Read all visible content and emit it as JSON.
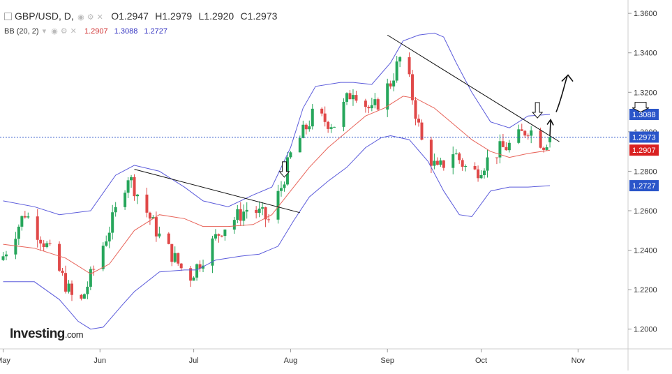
{
  "header": {
    "symbol": "GBP/USD, D,",
    "open": "O1.2947",
    "high": "H1.2979",
    "low": "L1.2920",
    "close": "C1.2973",
    "bb_label": "BB (20, 2)",
    "bb_mid": "1.2907",
    "bb_upper": "1.3088",
    "bb_lower": "1.2727"
  },
  "logo": {
    "name": "Investing",
    "suffix": ".com"
  },
  "colors": {
    "up": "#26a65b",
    "down": "#e04848",
    "bb_outer": "#5b5bdb",
    "bb_mid": "#e8645a",
    "price_line": "#2a55c9",
    "trend": "#111111",
    "axis_text": "#333333",
    "grid": "#eeeeee"
  },
  "chart_data": {
    "type": "candlestick",
    "title": "GBP/USD, D,",
    "y_ticks": [
      "1.3600",
      "1.3400",
      "1.3200",
      "1.3000",
      "1.2800",
      "1.2600",
      "1.2400",
      "1.2200",
      "1.2000"
    ],
    "y_range": [
      1.19,
      1.365
    ],
    "x_labels": [
      "May",
      "Jun",
      "Jul",
      "Aug",
      "Sep",
      "Oct",
      "Nov"
    ],
    "x_label_days": [
      0,
      31,
      61,
      92,
      123,
      153,
      184
    ],
    "x_range_days": [
      -1,
      200
    ],
    "last_price": {
      "label": "1.2973",
      "value": 1.2973
    },
    "bb_tags": [
      {
        "label": "1.3088",
        "value": 1.3088
      },
      {
        "label": "1.2907",
        "value": 1.2907
      },
      {
        "label": "1.2727",
        "value": 1.2727
      }
    ],
    "key_closes": [
      {
        "day": 0,
        "close": 1.237
      },
      {
        "day": 7,
        "close": 1.259
      },
      {
        "day": 14,
        "close": 1.242
      },
      {
        "day": 24,
        "close": 1.21
      },
      {
        "day": 35,
        "close": 1.255
      },
      {
        "day": 40,
        "close": 1.278
      },
      {
        "day": 50,
        "close": 1.247
      },
      {
        "day": 57,
        "close": 1.231
      },
      {
        "day": 60,
        "close": 1.227
      },
      {
        "day": 70,
        "close": 1.251
      },
      {
        "day": 79,
        "close": 1.262
      },
      {
        "day": 85,
        "close": 1.255
      },
      {
        "day": 89,
        "close": 1.272
      },
      {
        "day": 92,
        "close": 1.288
      },
      {
        "day": 99,
        "close": 1.308
      },
      {
        "day": 106,
        "close": 1.304
      },
      {
        "day": 112,
        "close": 1.322
      },
      {
        "day": 118,
        "close": 1.31
      },
      {
        "day": 124,
        "close": 1.325
      },
      {
        "day": 127,
        "close": 1.337
      },
      {
        "day": 130,
        "close": 1.325
      },
      {
        "day": 134,
        "close": 1.295
      },
      {
        "day": 139,
        "close": 1.28
      },
      {
        "day": 144,
        "close": 1.29
      },
      {
        "day": 150,
        "close": 1.278
      },
      {
        "day": 158,
        "close": 1.29
      },
      {
        "day": 163,
        "close": 1.294
      },
      {
        "day": 168,
        "close": 1.302
      },
      {
        "day": 173,
        "close": 1.294
      },
      {
        "day": 175,
        "close": 1.2973
      }
    ],
    "bb_upper_curve": [
      {
        "day": 0,
        "value": 1.265
      },
      {
        "day": 10,
        "value": 1.262
      },
      {
        "day": 18,
        "value": 1.258
      },
      {
        "day": 28,
        "value": 1.26
      },
      {
        "day": 36,
        "value": 1.278
      },
      {
        "day": 42,
        "value": 1.283
      },
      {
        "day": 50,
        "value": 1.28
      },
      {
        "day": 58,
        "value": 1.272
      },
      {
        "day": 64,
        "value": 1.265
      },
      {
        "day": 72,
        "value": 1.262
      },
      {
        "day": 80,
        "value": 1.268
      },
      {
        "day": 86,
        "value": 1.272
      },
      {
        "day": 92,
        "value": 1.292
      },
      {
        "day": 96,
        "value": 1.312
      },
      {
        "day": 100,
        "value": 1.323
      },
      {
        "day": 108,
        "value": 1.325
      },
      {
        "day": 112,
        "value": 1.325
      },
      {
        "day": 118,
        "value": 1.324
      },
      {
        "day": 124,
        "value": 1.335
      },
      {
        "day": 128,
        "value": 1.346
      },
      {
        "day": 133,
        "value": 1.349
      },
      {
        "day": 138,
        "value": 1.35
      },
      {
        "day": 141,
        "value": 1.348
      },
      {
        "day": 145,
        "value": 1.335
      },
      {
        "day": 150,
        "value": 1.32
      },
      {
        "day": 156,
        "value": 1.305
      },
      {
        "day": 162,
        "value": 1.302
      },
      {
        "day": 168,
        "value": 1.308
      },
      {
        "day": 175,
        "value": 1.3088
      }
    ],
    "bb_mid_curve": [
      {
        "day": 0,
        "value": 1.243
      },
      {
        "day": 10,
        "value": 1.241
      },
      {
        "day": 20,
        "value": 1.236
      },
      {
        "day": 28,
        "value": 1.228
      },
      {
        "day": 34,
        "value": 1.233
      },
      {
        "day": 42,
        "value": 1.25
      },
      {
        "day": 50,
        "value": 1.258
      },
      {
        "day": 58,
        "value": 1.256
      },
      {
        "day": 64,
        "value": 1.252
      },
      {
        "day": 72,
        "value": 1.252
      },
      {
        "day": 80,
        "value": 1.253
      },
      {
        "day": 86,
        "value": 1.258
      },
      {
        "day": 92,
        "value": 1.27
      },
      {
        "day": 98,
        "value": 1.282
      },
      {
        "day": 104,
        "value": 1.292
      },
      {
        "day": 110,
        "value": 1.3
      },
      {
        "day": 116,
        "value": 1.308
      },
      {
        "day": 122,
        "value": 1.312
      },
      {
        "day": 128,
        "value": 1.318
      },
      {
        "day": 132,
        "value": 1.317
      },
      {
        "day": 138,
        "value": 1.312
      },
      {
        "day": 144,
        "value": 1.304
      },
      {
        "day": 150,
        "value": 1.296
      },
      {
        "day": 156,
        "value": 1.29
      },
      {
        "day": 162,
        "value": 1.287
      },
      {
        "day": 168,
        "value": 1.289
      },
      {
        "day": 175,
        "value": 1.2907
      }
    ],
    "bb_lower_curve": [
      {
        "day": 0,
        "value": 1.224
      },
      {
        "day": 10,
        "value": 1.224
      },
      {
        "day": 18,
        "value": 1.215
      },
      {
        "day": 24,
        "value": 1.204
      },
      {
        "day": 28,
        "value": 1.2
      },
      {
        "day": 32,
        "value": 1.201
      },
      {
        "day": 38,
        "value": 1.212
      },
      {
        "day": 42,
        "value": 1.219
      },
      {
        "day": 50,
        "value": 1.229
      },
      {
        "day": 58,
        "value": 1.23
      },
      {
        "day": 62,
        "value": 1.23
      },
      {
        "day": 68,
        "value": 1.235
      },
      {
        "day": 76,
        "value": 1.237
      },
      {
        "day": 82,
        "value": 1.238
      },
      {
        "day": 88,
        "value": 1.242
      },
      {
        "day": 93,
        "value": 1.255
      },
      {
        "day": 98,
        "value": 1.267
      },
      {
        "day": 104,
        "value": 1.275
      },
      {
        "day": 110,
        "value": 1.282
      },
      {
        "day": 116,
        "value": 1.292
      },
      {
        "day": 121,
        "value": 1.297
      },
      {
        "day": 124,
        "value": 1.298
      },
      {
        "day": 130,
        "value": 1.296
      },
      {
        "day": 136,
        "value": 1.285
      },
      {
        "day": 141,
        "value": 1.27
      },
      {
        "day": 146,
        "value": 1.258
      },
      {
        "day": 150,
        "value": 1.257
      },
      {
        "day": 156,
        "value": 1.27
      },
      {
        "day": 162,
        "value": 1.272
      },
      {
        "day": 168,
        "value": 1.272
      },
      {
        "day": 175,
        "value": 1.2727
      }
    ],
    "trendlines": [
      {
        "from": {
          "day": 42,
          "value": 1.281
        },
        "to": {
          "day": 95,
          "value": 1.259
        }
      },
      {
        "from": {
          "day": 123,
          "value": 1.349
        },
        "to": {
          "day": 178,
          "value": 1.295
        }
      }
    ],
    "annotations": [
      {
        "type": "down-arrow",
        "day": 90,
        "value": 1.277
      },
      {
        "type": "down-arrow",
        "day": 171,
        "value": 1.307
      },
      {
        "type": "down-arrow-axis",
        "value": 1.31
      },
      {
        "type": "hand-arrow-up",
        "day": 175,
        "value": 1.298
      },
      {
        "type": "hand-arrow-up-right",
        "day": 177,
        "value": 1.31
      }
    ]
  }
}
